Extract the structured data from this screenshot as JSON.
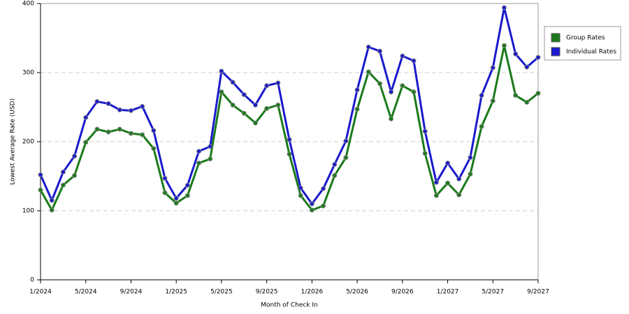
{
  "chart_data": {
    "type": "line",
    "x_label": "Month of Check In",
    "y_label": "Lowest Average Rate (USD)",
    "categories": [
      "1/2024",
      null,
      null,
      null,
      "5/2024",
      null,
      null,
      null,
      "9/2024",
      null,
      null,
      null,
      "1/2025",
      null,
      null,
      null,
      "5/2025",
      null,
      null,
      null,
      "9/2025",
      null,
      null,
      null,
      "1/2026",
      null,
      null,
      null,
      "5/2026",
      null,
      null,
      null,
      "9/2026",
      null,
      null,
      null,
      "1/2027",
      null,
      null,
      null,
      "5/2027",
      null,
      null,
      null,
      "9/2027"
    ],
    "series": [
      {
        "name": "Group Rates",
        "color": "#1a7a1a",
        "values": [
          130,
          101,
          137,
          151,
          199,
          218,
          214,
          218,
          212,
          210,
          190,
          126,
          111,
          122,
          169,
          175,
          272,
          253,
          241,
          227,
          248,
          253,
          182,
          122,
          101,
          107,
          151,
          177,
          247,
          301,
          284,
          233,
          281,
          272,
          183,
          122,
          140,
          123,
          153,
          222,
          259,
          339,
          267,
          257,
          270
        ]
      },
      {
        "name": "Individual Rates",
        "color": "#1a1acc",
        "values": [
          152,
          115,
          156,
          179,
          235,
          258,
          255,
          246,
          245,
          251,
          216,
          147,
          118,
          137,
          186,
          193,
          302,
          286,
          268,
          253,
          281,
          285,
          203,
          133,
          110,
          132,
          167,
          201,
          275,
          337,
          331,
          272,
          324,
          317,
          215,
          141,
          169,
          146,
          177,
          267,
          307,
          394,
          327,
          308,
          322
        ]
      }
    ],
    "ylim": [
      0,
      400
    ],
    "yticks": [
      0,
      100,
      200,
      300,
      400
    ],
    "grid": true,
    "legend": "right"
  }
}
